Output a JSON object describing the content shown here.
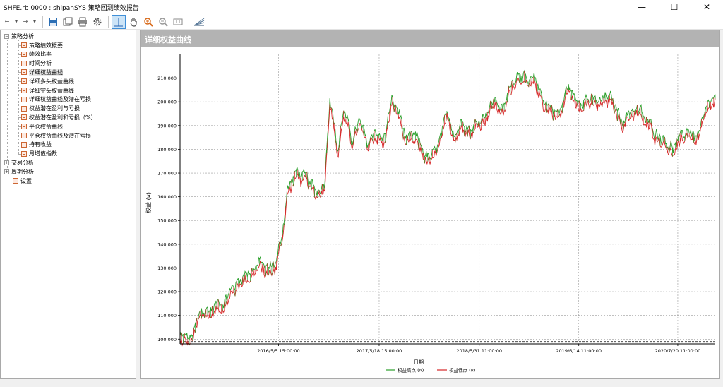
{
  "window": {
    "title": "SHFE.rb 0000 : shipanSYS 策略回测绩效报告",
    "minimize": "—",
    "maximize": "☐",
    "close": "✕"
  },
  "toolbar": {
    "back": "←",
    "forward": "→"
  },
  "tree": {
    "strategy_root": "策略分析",
    "items": [
      "策略绩效概要",
      "绩效比率",
      "时间分析",
      "详细权益曲线",
      "详细多头权益曲线",
      "详细空头权益曲线",
      "详细权益曲线及潜在亏损",
      "权益潜在盈利与亏损",
      "权益潜在盈利和亏损（%）",
      "平仓权益曲线",
      "平仓权益曲线及潜在亏损",
      "持有收益",
      "月增值指数"
    ],
    "selected_index": 3,
    "trade_root": "交易分析",
    "period_root": "周期分析",
    "settings": "设置"
  },
  "panel": {
    "title": "详细权益曲线"
  },
  "chart_data": {
    "type": "line",
    "title": "",
    "xlabel": "日期",
    "ylabel": "权益 (¤)",
    "ylim": [
      98000,
      220000
    ],
    "yticks": [
      "100,000",
      "110,000",
      "120,000",
      "130,000",
      "140,000",
      "150,000",
      "160,000",
      "170,000",
      "180,000",
      "190,000",
      "200,000",
      "210,000"
    ],
    "ytick_values": [
      100000,
      110000,
      120000,
      130000,
      140000,
      150000,
      160000,
      170000,
      180000,
      190000,
      200000,
      210000
    ],
    "xticks": [
      "2016/5/5 15:00:00",
      "2017/5/18 15:00:00",
      "2018/5/31 11:00:00",
      "2019/6/14 11:00:00",
      "2020/7/20 11:00:00"
    ],
    "xtick_positions": [
      0.184,
      0.372,
      0.559,
      0.745,
      0.93
    ],
    "baseline": 99000,
    "grid": true,
    "legend_position": "bottom-center",
    "series": [
      {
        "name": "权益高点 (¤)",
        "color": "#2ca02c"
      },
      {
        "name": "权益低点 (¤)",
        "color": "#d62728"
      }
    ],
    "equity_profile": {
      "x_fraction": [
        0.0,
        0.02,
        0.04,
        0.06,
        0.09,
        0.12,
        0.15,
        0.165,
        0.18,
        0.19,
        0.2,
        0.22,
        0.24,
        0.255,
        0.27,
        0.28,
        0.295,
        0.305,
        0.32,
        0.335,
        0.35,
        0.365,
        0.38,
        0.395,
        0.41,
        0.425,
        0.44,
        0.455,
        0.47,
        0.485,
        0.5,
        0.515,
        0.53,
        0.545,
        0.56,
        0.575,
        0.59,
        0.605,
        0.62,
        0.635,
        0.65,
        0.665,
        0.68,
        0.695,
        0.71,
        0.725,
        0.74,
        0.755,
        0.77,
        0.785,
        0.8,
        0.815,
        0.83,
        0.845,
        0.86,
        0.875,
        0.89,
        0.905,
        0.92,
        0.935,
        0.95,
        0.965,
        0.98,
        0.99,
        1.0
      ],
      "equity": [
        100000,
        98500,
        110000,
        112000,
        118000,
        127000,
        131000,
        128000,
        132000,
        142000,
        162000,
        170000,
        164000,
        161000,
        166000,
        204000,
        178000,
        196000,
        183000,
        190000,
        180000,
        188000,
        182000,
        199000,
        194000,
        181000,
        183000,
        178000,
        174000,
        181000,
        192000,
        187000,
        193000,
        188000,
        192000,
        197000,
        200000,
        195000,
        208000,
        214000,
        205000,
        207000,
        200000,
        197000,
        194000,
        206000,
        199000,
        203000,
        199000,
        198000,
        201000,
        196000,
        192000,
        197000,
        194000,
        189000,
        187000,
        185000,
        180000,
        182000,
        188000,
        184000,
        191000,
        197000,
        200000
      ]
    }
  }
}
